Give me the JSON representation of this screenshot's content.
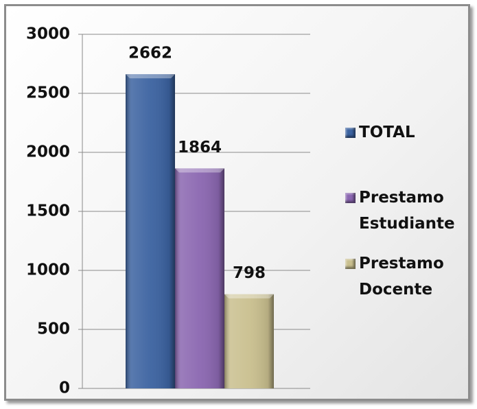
{
  "chart_data": {
    "type": "bar",
    "categories": [
      null
    ],
    "series": [
      {
        "name": "TOTAL",
        "color": "#3b62a0",
        "values": [
          2662
        ]
      },
      {
        "name": "Prestamo Estudiante",
        "color": "#8a66b0",
        "values": [
          1864
        ]
      },
      {
        "name": "Prestamo Docente",
        "color": "#c9bf8e",
        "values": [
          798
        ]
      }
    ],
    "ylim": [
      0,
      3000
    ],
    "yticks": [
      0,
      500,
      1000,
      1500,
      2000,
      2500,
      3000
    ],
    "grid": true,
    "legend": "right"
  }
}
